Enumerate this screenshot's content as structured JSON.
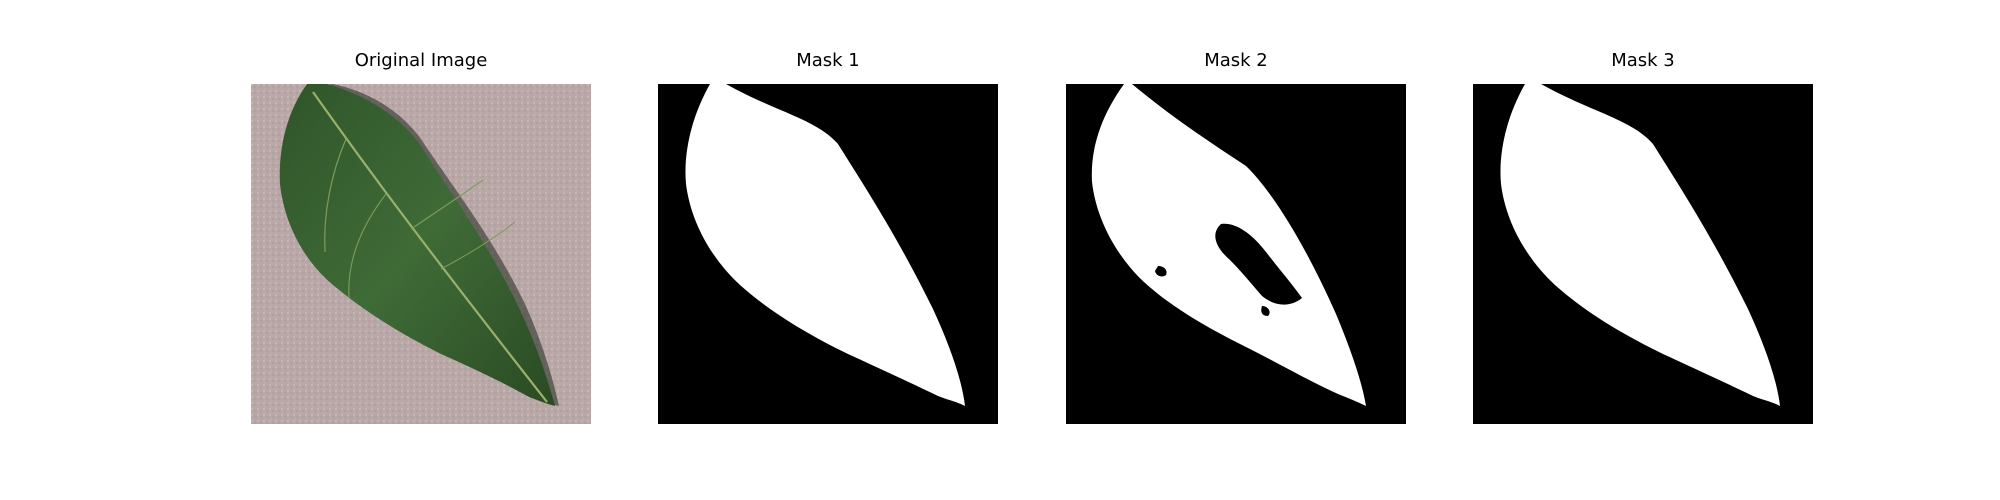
{
  "panels": [
    {
      "title": "Original Image"
    },
    {
      "title": "Mask 1"
    },
    {
      "title": "Mask 2"
    },
    {
      "title": "Mask 3"
    }
  ],
  "colors": {
    "background_surface": "#b8a7a6",
    "leaf_green": "#3f6b37",
    "leaf_dark": "#27451f",
    "vein": "#9bb06a",
    "mask_background": "#000000",
    "mask_foreground": "#ffffff"
  }
}
